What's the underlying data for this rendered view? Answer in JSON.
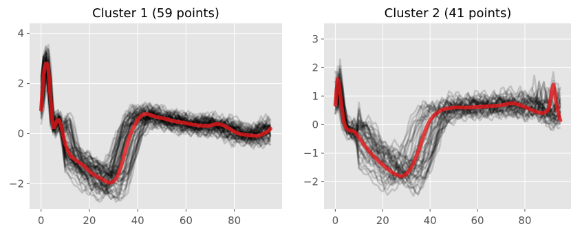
{
  "chart_data": [
    {
      "type": "line",
      "title": "Cluster 1 (59 points)",
      "xlabel": "",
      "ylabel": "",
      "xlim": [
        -4.75,
        99.75
      ],
      "ylim": [
        -3.0,
        4.4
      ],
      "xticks": [
        0,
        20,
        40,
        60,
        80
      ],
      "yticks": [
        -2,
        0,
        2,
        4
      ],
      "ytick_labels": [
        "−2",
        "0",
        "2",
        "4"
      ],
      "grid": true,
      "legend": "none",
      "background": "#e5e5e5",
      "mean_color": "#e31a1c",
      "member_color": "#000000",
      "member_count": 59,
      "mean_curve": {
        "x": [
          0,
          1,
          2,
          3,
          4,
          5,
          6,
          7,
          8,
          10,
          12,
          15,
          18,
          20,
          22,
          25,
          28,
          30,
          32,
          34,
          36,
          38,
          40,
          42,
          44,
          46,
          48,
          50,
          55,
          60,
          65,
          70,
          72,
          75,
          78,
          80,
          82,
          85,
          88,
          90,
          92,
          94,
          95
        ],
        "y": [
          0.95,
          2.3,
          2.8,
          2.55,
          1.3,
          0.25,
          0.4,
          0.55,
          0.4,
          -0.4,
          -0.85,
          -1.1,
          -1.3,
          -1.5,
          -1.65,
          -1.8,
          -1.95,
          -1.9,
          -1.6,
          -1.0,
          -0.3,
          0.2,
          0.55,
          0.75,
          0.78,
          0.72,
          0.66,
          0.62,
          0.5,
          0.42,
          0.33,
          0.32,
          0.38,
          0.35,
          0.2,
          0.08,
          0.0,
          -0.05,
          -0.08,
          -0.08,
          0.0,
          0.1,
          0.2
        ]
      }
    },
    {
      "type": "line",
      "title": "Cluster 2 (41 points)",
      "xlabel": "",
      "ylabel": "",
      "xlim": [
        -4.75,
        99.75
      ],
      "ylim": [
        -2.95,
        3.55
      ],
      "xticks": [
        0,
        20,
        40,
        60,
        80
      ],
      "yticks": [
        -2,
        -1,
        0,
        1,
        2,
        3
      ],
      "ytick_labels": [
        "−2",
        "−1",
        "0",
        "1",
        "2",
        "3"
      ],
      "grid": true,
      "legend": "none",
      "background": "#e5e5e5",
      "mean_color": "#e31a1c",
      "member_color": "#000000",
      "member_count": 41,
      "mean_curve": {
        "x": [
          0,
          1,
          2,
          3,
          4,
          5,
          6,
          8,
          10,
          12,
          15,
          18,
          20,
          22,
          25,
          28,
          30,
          32,
          34,
          36,
          38,
          40,
          42,
          45,
          50,
          55,
          60,
          65,
          70,
          75,
          80,
          85,
          88,
          90,
          91,
          92,
          93,
          94,
          95
        ],
        "y": [
          0.7,
          1.6,
          1.1,
          0.45,
          0.0,
          -0.15,
          -0.2,
          -0.25,
          -0.45,
          -0.7,
          -1.0,
          -1.25,
          -1.4,
          -1.55,
          -1.72,
          -1.8,
          -1.72,
          -1.5,
          -1.15,
          -0.7,
          -0.2,
          0.15,
          0.35,
          0.52,
          0.6,
          0.6,
          0.62,
          0.65,
          0.68,
          0.75,
          0.62,
          0.45,
          0.42,
          0.55,
          1.0,
          1.4,
          0.9,
          0.45,
          0.15
        ]
      }
    }
  ]
}
